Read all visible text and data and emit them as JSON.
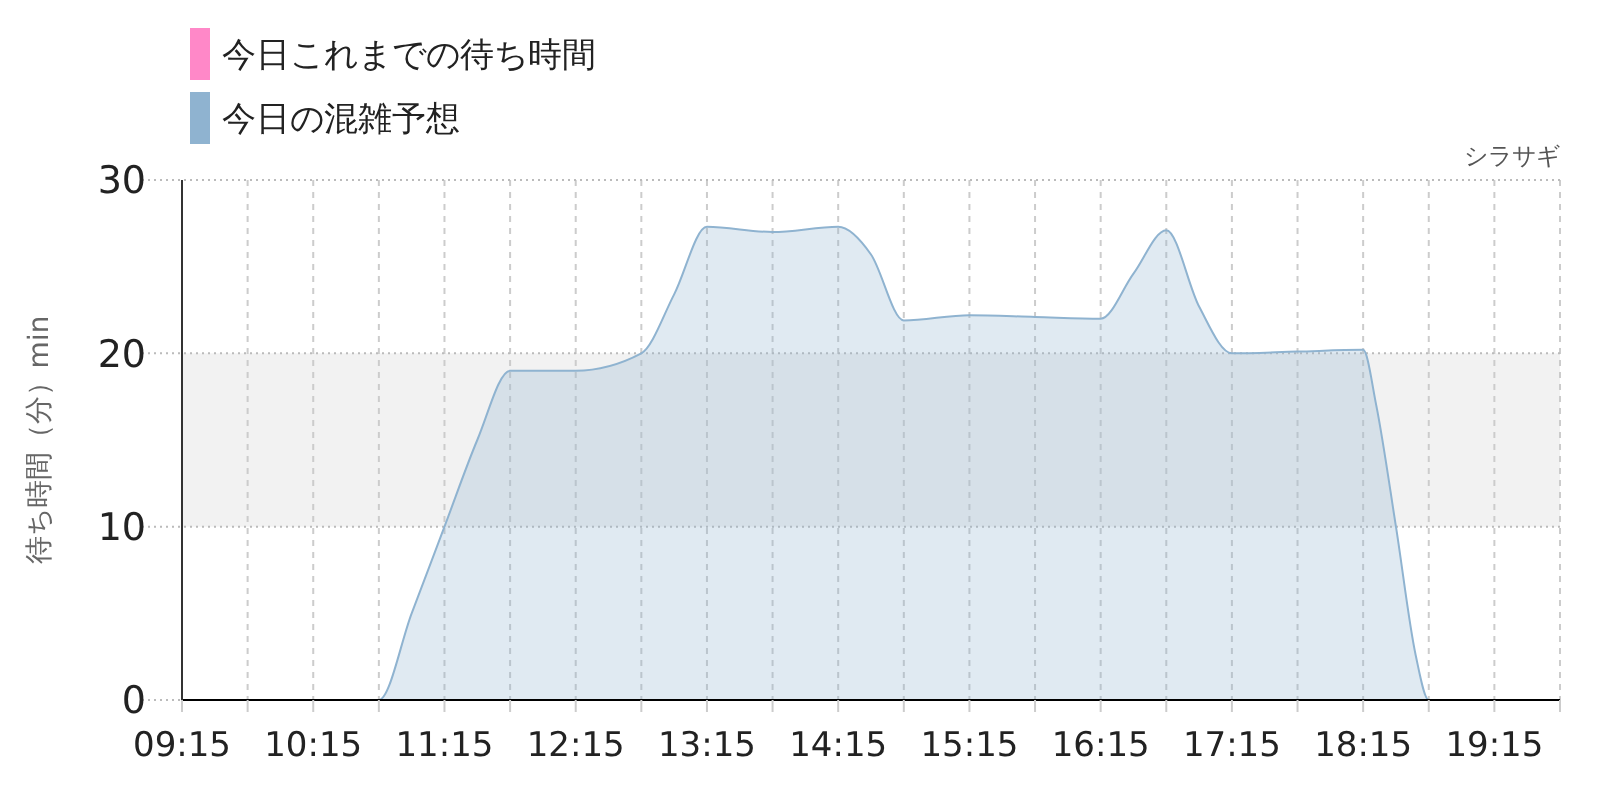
{
  "chart_data": {
    "type": "area",
    "ylabel": "待ち時間（分）min",
    "annotations": [
      "シラサギ"
    ],
    "series": [
      {
        "name": "今日これまでの待ち時間",
        "color": "#ff88c8"
      },
      {
        "name": "今日の混雑予想",
        "color": "#8fb3d0",
        "x": [
          9.25,
          9.75,
          10.25,
          10.75,
          11.0,
          11.25,
          11.5,
          11.75,
          12.25,
          12.75,
          13.0,
          13.25,
          13.75,
          14.25,
          14.5,
          14.75,
          15.25,
          15.75,
          16.25,
          16.5,
          16.75,
          17.0,
          17.25,
          17.75,
          18.25,
          18.35,
          18.5,
          18.65,
          18.75,
          19.25,
          19.75
        ],
        "values": [
          0,
          0,
          0,
          0,
          5,
          10,
          15,
          19,
          19,
          20,
          23.4,
          27.3,
          27,
          27.3,
          25.7,
          21.9,
          22.2,
          22.1,
          22,
          24.6,
          27.1,
          22.7,
          20,
          20.1,
          20.2,
          17,
          10,
          2.6,
          0,
          0,
          0
        ]
      }
    ],
    "xlim": [
      9.25,
      19.75
    ],
    "xticks": [
      {
        "value": 9.25,
        "label": "09:15"
      },
      {
        "value": 9.75,
        "label": null
      },
      {
        "value": 10.25,
        "label": "10:15"
      },
      {
        "value": 10.75,
        "label": null
      },
      {
        "value": 11.25,
        "label": "11:15"
      },
      {
        "value": 11.75,
        "label": null
      },
      {
        "value": 12.25,
        "label": "12:15"
      },
      {
        "value": 12.75,
        "label": null
      },
      {
        "value": 13.25,
        "label": "13:15"
      },
      {
        "value": 13.75,
        "label": null
      },
      {
        "value": 14.25,
        "label": "14:15"
      },
      {
        "value": 14.75,
        "label": null
      },
      {
        "value": 15.25,
        "label": "15:15"
      },
      {
        "value": 15.75,
        "label": null
      },
      {
        "value": 16.25,
        "label": "16:15"
      },
      {
        "value": 16.75,
        "label": null
      },
      {
        "value": 17.25,
        "label": "17:15"
      },
      {
        "value": 17.75,
        "label": null
      },
      {
        "value": 18.25,
        "label": "18:15"
      },
      {
        "value": 18.75,
        "label": null
      },
      {
        "value": 19.25,
        "label": "19:15"
      },
      {
        "value": 19.75,
        "label": null
      }
    ],
    "ylim": [
      0,
      30
    ],
    "yticks": [
      0,
      10,
      20,
      30
    ],
    "bands": [
      {
        "axis": "y",
        "from": 10,
        "to": 20,
        "color": "#f2f2f2"
      }
    ],
    "grid": true,
    "legend": "top left"
  }
}
